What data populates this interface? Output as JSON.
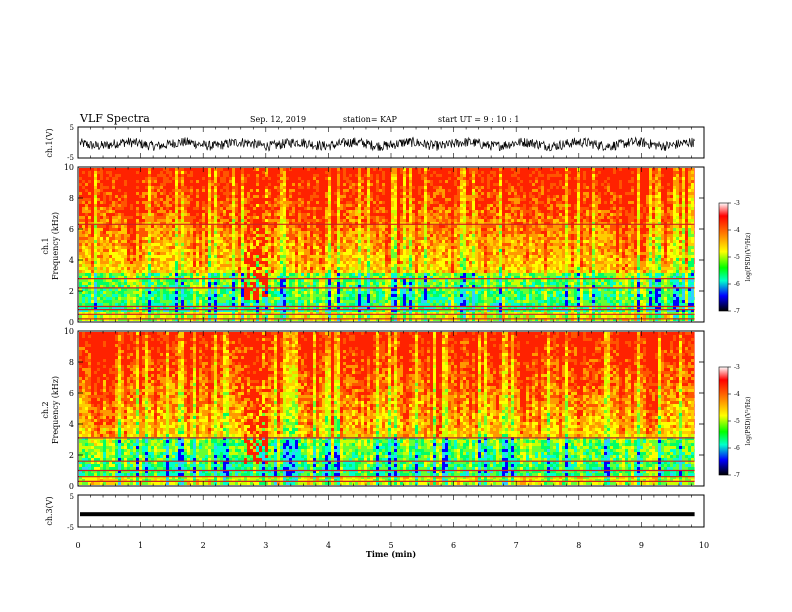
{
  "header": {
    "title": "VLF Spectra",
    "date": "Sep. 12, 2019",
    "station": "station= KAP",
    "start": "start  UT  =   9  : 10 : 1"
  },
  "chart_data": [
    {
      "type": "line",
      "name": "ch1-waveform",
      "ylabel": "ch.1(V)",
      "ylim": [
        -5,
        5
      ],
      "yticks": [
        "5",
        "-5"
      ],
      "xlim": [
        0,
        10
      ],
      "x_coverage_min": 9.85,
      "description_of_values": "dense noisy waveform oscillating around about -0.5 V"
    },
    {
      "type": "heatmap",
      "name": "ch1-spectrogram",
      "ylabel": "ch.1 Frequency (kHz)",
      "ylim": [
        0,
        10
      ],
      "yticks": [
        "0",
        "2",
        "4",
        "6",
        "8",
        "10"
      ],
      "xlim": [
        0,
        10
      ],
      "x_coverage_min": 9.85,
      "colorbar": {
        "label": "log(PSD)(V²/Hz)",
        "range": [
          -7,
          -3
        ],
        "ticks": [
          "-3",
          "-4",
          "-5",
          "-6",
          "-7"
        ]
      },
      "bands_khz": [
        0.2,
        0.5,
        0.8,
        1.0,
        2.2,
        2.8,
        6.3
      ],
      "bright_column_min": [
        2.62,
        3.02
      ]
    },
    {
      "type": "heatmap",
      "name": "ch2-spectrogram",
      "ylabel": "ch.2 Frequency (kHz)",
      "ylim": [
        0,
        10
      ],
      "yticks": [
        "0",
        "2",
        "4",
        "6",
        "8",
        "10"
      ],
      "xlim": [
        0,
        10
      ],
      "x_coverage_min": 9.85,
      "colorbar": {
        "label": "log(PSD)(V²/Hz)",
        "range": [
          -7,
          -3
        ],
        "ticks": [
          "-3",
          "-4",
          "-5",
          "-6",
          "-7"
        ]
      },
      "bands_khz": [
        0.3,
        0.6,
        1.0,
        1.6,
        3.1
      ],
      "bright_column_min": [
        2.62,
        3.02
      ]
    },
    {
      "type": "line",
      "name": "ch3-waveform",
      "ylabel": "ch.3(V)",
      "ylim": [
        -5,
        5
      ],
      "yticks": [
        "5",
        "-5"
      ],
      "xlim": [
        0,
        10
      ],
      "x_coverage_min": 9.85,
      "values_approx": -1.0,
      "xlabel": "Time  (min)",
      "xticks": [
        "0",
        "1",
        "2",
        "3",
        "4",
        "5",
        "6",
        "7",
        "8",
        "9",
        "10"
      ]
    }
  ]
}
